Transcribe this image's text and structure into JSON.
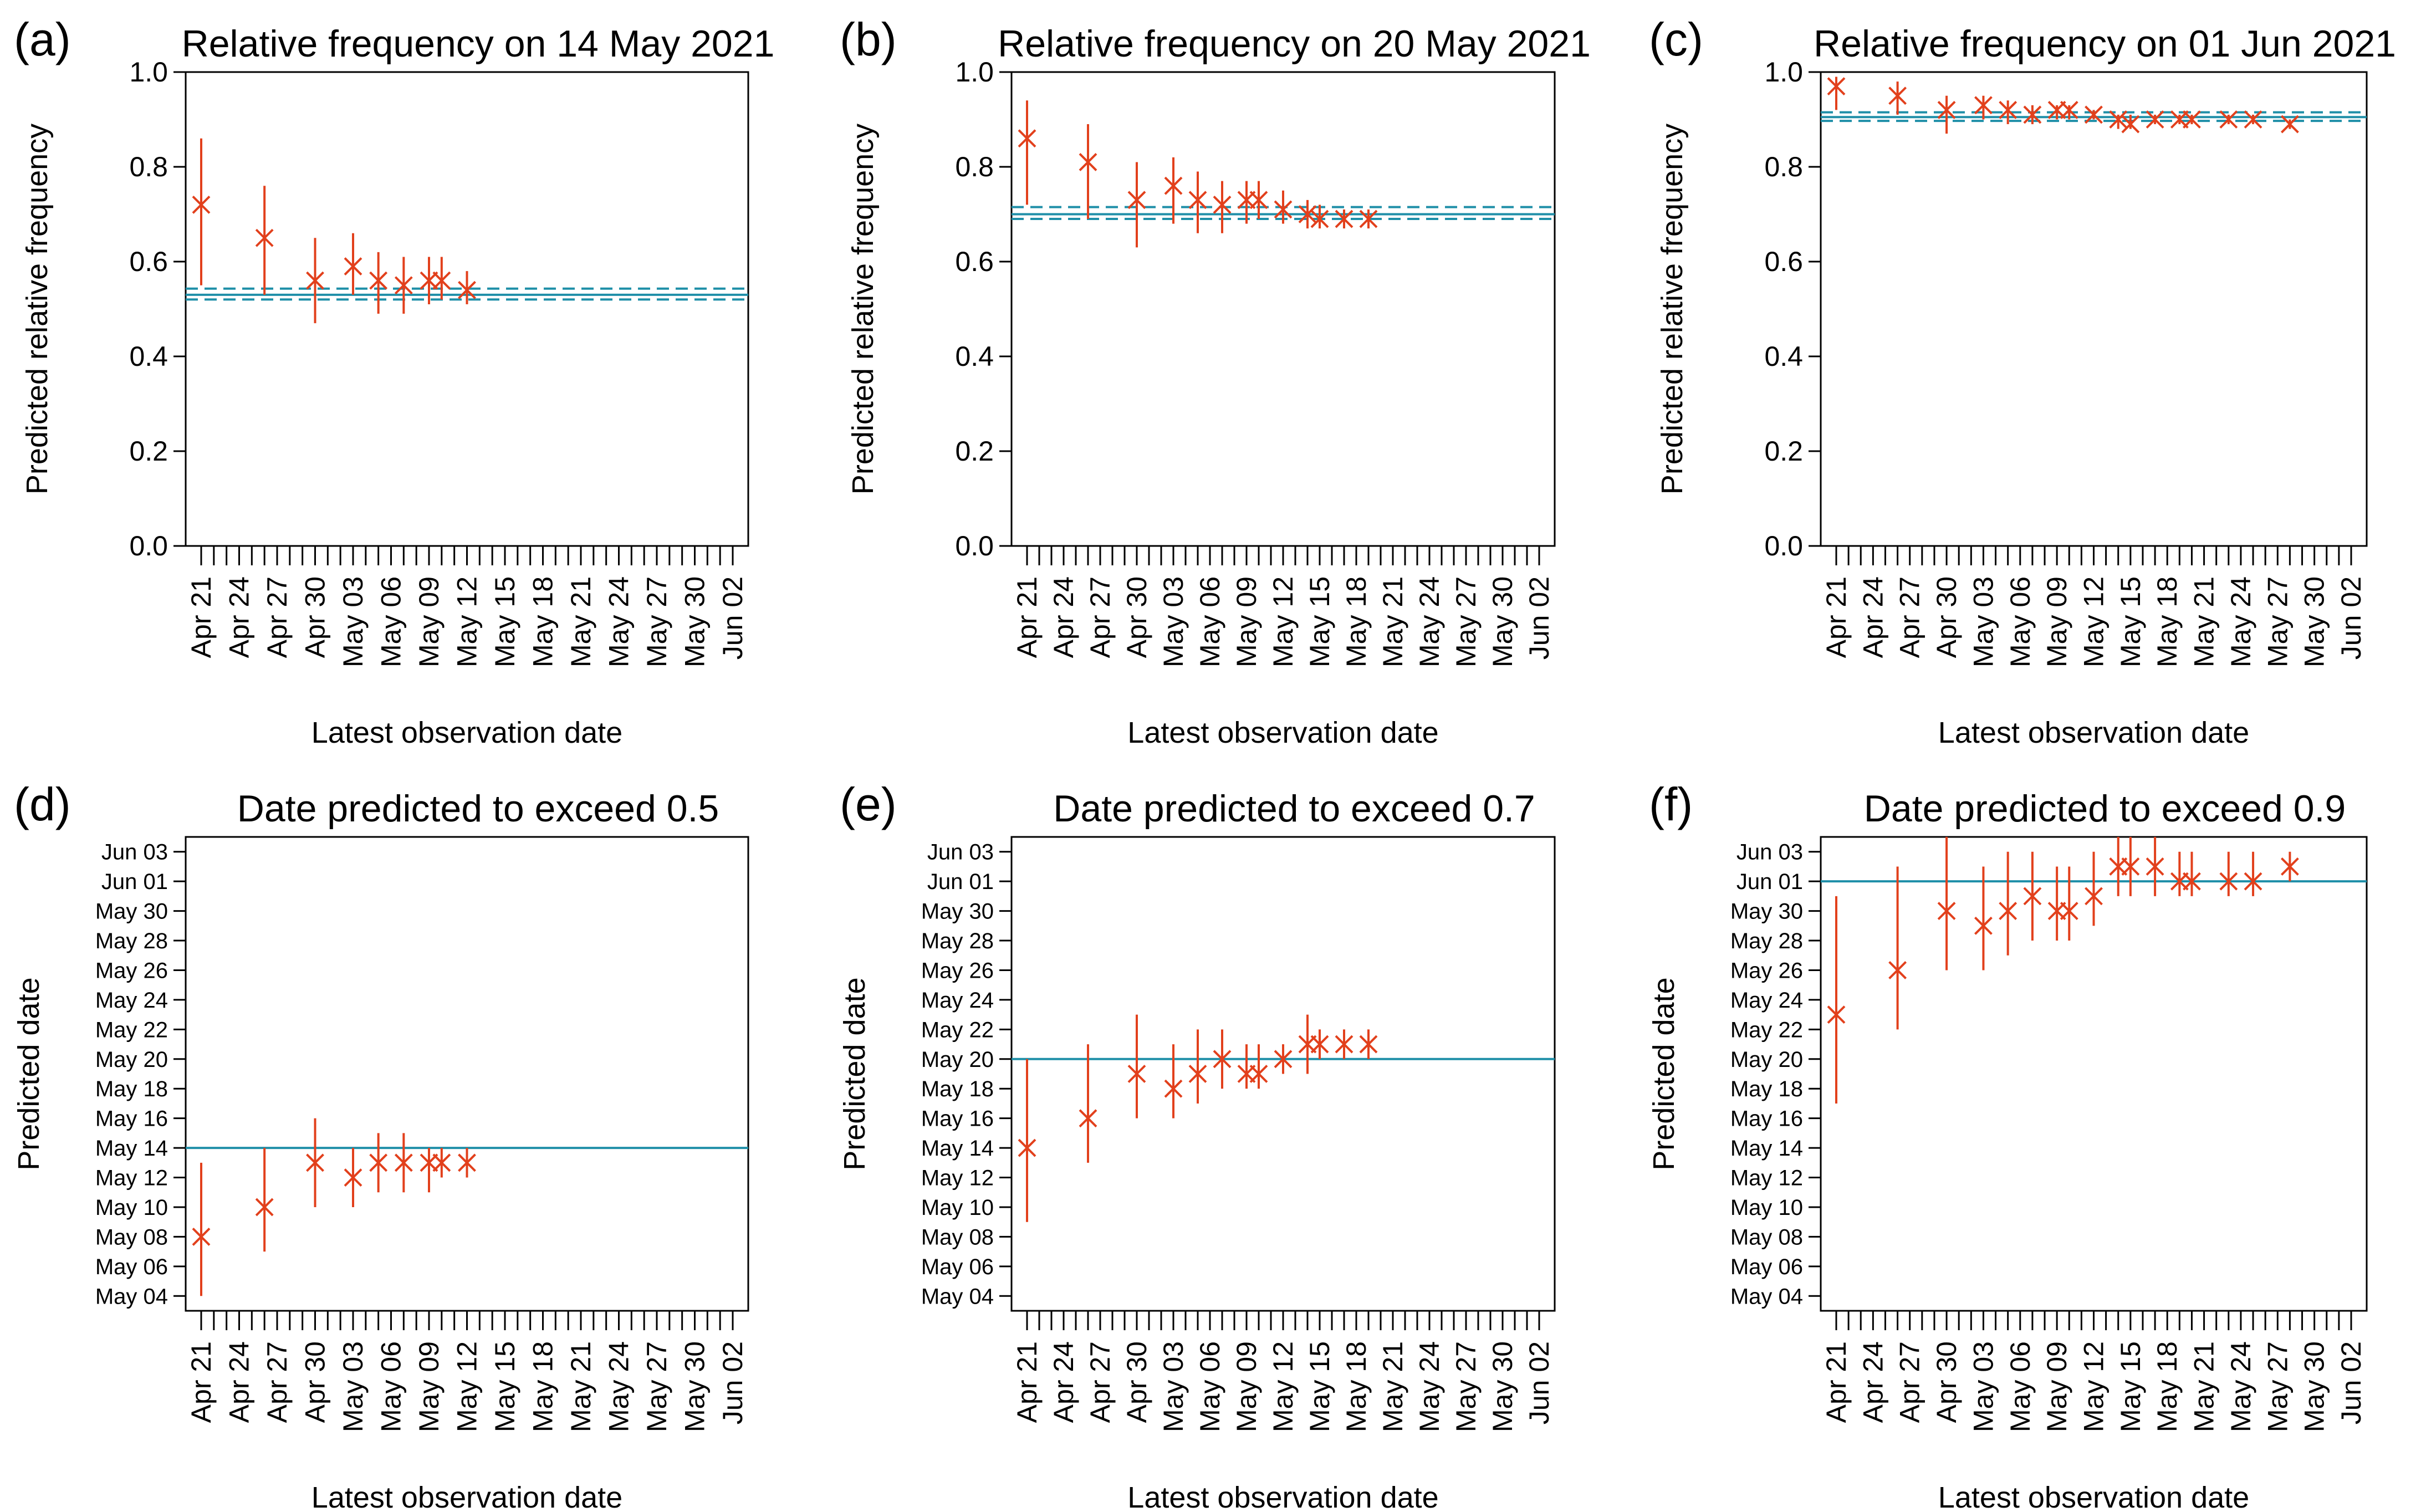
{
  "figure": {
    "series_colors": {
      "estimate": "#E2401C",
      "reference": "#1F8FA8"
    }
  },
  "chart_data": [
    {
      "panel": "(a)",
      "type": "scatter",
      "title": "Relative frequency on 14 May 2021",
      "xlabel": "Latest observation date",
      "ylabel": "Predicted relative frequency",
      "ylim": [
        0,
        1
      ],
      "yticks": [
        0.0,
        0.2,
        0.4,
        0.6,
        0.8,
        1.0
      ],
      "ytick_labels": [
        "0.0",
        "0.2",
        "0.4",
        "0.6",
        "0.8",
        "1.0"
      ],
      "x_day_range": [
        0,
        42
      ],
      "xtick_days": [
        0,
        3,
        6,
        9,
        12,
        15,
        18,
        21,
        24,
        27,
        30,
        33,
        36,
        39,
        42
      ],
      "xtick_labels": [
        "Apr 21",
        "Apr 24",
        "Apr 27",
        "Apr 30",
        "May 03",
        "May 06",
        "May 09",
        "May 12",
        "May 15",
        "May 18",
        "May 21",
        "May 24",
        "May 27",
        "May 30",
        "Jun 02"
      ],
      "grid": false,
      "reference": {
        "value": 0.53,
        "lower": 0.52,
        "upper": 0.543
      },
      "points": [
        {
          "x": 0,
          "y": 0.72,
          "lo": 0.55,
          "hi": 0.86
        },
        {
          "x": 5,
          "y": 0.65,
          "lo": 0.53,
          "hi": 0.76
        },
        {
          "x": 9,
          "y": 0.56,
          "lo": 0.47,
          "hi": 0.65
        },
        {
          "x": 12,
          "y": 0.59,
          "lo": 0.53,
          "hi": 0.66
        },
        {
          "x": 14,
          "y": 0.56,
          "lo": 0.49,
          "hi": 0.62
        },
        {
          "x": 16,
          "y": 0.55,
          "lo": 0.49,
          "hi": 0.61
        },
        {
          "x": 18,
          "y": 0.56,
          "lo": 0.51,
          "hi": 0.61
        },
        {
          "x": 19,
          "y": 0.56,
          "lo": 0.52,
          "hi": 0.61
        },
        {
          "x": 21,
          "y": 0.54,
          "lo": 0.51,
          "hi": 0.58
        }
      ]
    },
    {
      "panel": "(b)",
      "type": "scatter",
      "title": "Relative frequency on 20 May 2021",
      "xlabel": "Latest observation date",
      "ylabel": "Predicted relative frequency",
      "ylim": [
        0,
        1
      ],
      "yticks": [
        0.0,
        0.2,
        0.4,
        0.6,
        0.8,
        1.0
      ],
      "ytick_labels": [
        "0.0",
        "0.2",
        "0.4",
        "0.6",
        "0.8",
        "1.0"
      ],
      "x_day_range": [
        0,
        42
      ],
      "xtick_days": [
        0,
        3,
        6,
        9,
        12,
        15,
        18,
        21,
        24,
        27,
        30,
        33,
        36,
        39,
        42
      ],
      "xtick_labels": [
        "Apr 21",
        "Apr 24",
        "Apr 27",
        "Apr 30",
        "May 03",
        "May 06",
        "May 09",
        "May 12",
        "May 15",
        "May 18",
        "May 21",
        "May 24",
        "May 27",
        "May 30",
        "Jun 02"
      ],
      "grid": false,
      "reference": {
        "value": 0.7,
        "lower": 0.69,
        "upper": 0.715
      },
      "points": [
        {
          "x": 0,
          "y": 0.86,
          "lo": 0.72,
          "hi": 0.94
        },
        {
          "x": 5,
          "y": 0.81,
          "lo": 0.69,
          "hi": 0.89
        },
        {
          "x": 9,
          "y": 0.73,
          "lo": 0.63,
          "hi": 0.81
        },
        {
          "x": 12,
          "y": 0.76,
          "lo": 0.68,
          "hi": 0.82
        },
        {
          "x": 14,
          "y": 0.73,
          "lo": 0.66,
          "hi": 0.79
        },
        {
          "x": 16,
          "y": 0.72,
          "lo": 0.66,
          "hi": 0.77
        },
        {
          "x": 18,
          "y": 0.73,
          "lo": 0.68,
          "hi": 0.77
        },
        {
          "x": 19,
          "y": 0.73,
          "lo": 0.69,
          "hi": 0.77
        },
        {
          "x": 21,
          "y": 0.71,
          "lo": 0.68,
          "hi": 0.75
        },
        {
          "x": 23,
          "y": 0.7,
          "lo": 0.67,
          "hi": 0.73
        },
        {
          "x": 24,
          "y": 0.69,
          "lo": 0.67,
          "hi": 0.72
        },
        {
          "x": 26,
          "y": 0.69,
          "lo": 0.67,
          "hi": 0.71
        },
        {
          "x": 28,
          "y": 0.69,
          "lo": 0.67,
          "hi": 0.71
        }
      ]
    },
    {
      "panel": "(c)",
      "type": "scatter",
      "title": "Relative frequency on 01 Jun 2021",
      "xlabel": "Latest observation date",
      "ylabel": "Predicted relative frequency",
      "ylim": [
        0,
        1
      ],
      "yticks": [
        0.0,
        0.2,
        0.4,
        0.6,
        0.8,
        1.0
      ],
      "ytick_labels": [
        "0.0",
        "0.2",
        "0.4",
        "0.6",
        "0.8",
        "1.0"
      ],
      "x_day_range": [
        0,
        42
      ],
      "xtick_days": [
        0,
        3,
        6,
        9,
        12,
        15,
        18,
        21,
        24,
        27,
        30,
        33,
        36,
        39,
        42
      ],
      "xtick_labels": [
        "Apr 21",
        "Apr 24",
        "Apr 27",
        "Apr 30",
        "May 03",
        "May 06",
        "May 09",
        "May 12",
        "May 15",
        "May 18",
        "May 21",
        "May 24",
        "May 27",
        "May 30",
        "Jun 02"
      ],
      "grid": false,
      "reference": {
        "value": 0.905,
        "lower": 0.897,
        "upper": 0.915
      },
      "points": [
        {
          "x": 0,
          "y": 0.97,
          "lo": 0.92,
          "hi": 0.99
        },
        {
          "x": 5,
          "y": 0.95,
          "lo": 0.91,
          "hi": 0.98
        },
        {
          "x": 9,
          "y": 0.92,
          "lo": 0.87,
          "hi": 0.95
        },
        {
          "x": 12,
          "y": 0.93,
          "lo": 0.9,
          "hi": 0.95
        },
        {
          "x": 14,
          "y": 0.92,
          "lo": 0.89,
          "hi": 0.94
        },
        {
          "x": 16,
          "y": 0.91,
          "lo": 0.89,
          "hi": 0.93
        },
        {
          "x": 18,
          "y": 0.92,
          "lo": 0.9,
          "hi": 0.93
        },
        {
          "x": 19,
          "y": 0.92,
          "lo": 0.9,
          "hi": 0.93
        },
        {
          "x": 21,
          "y": 0.91,
          "lo": 0.9,
          "hi": 0.92
        },
        {
          "x": 23,
          "y": 0.9,
          "lo": 0.88,
          "hi": 0.91
        },
        {
          "x": 24,
          "y": 0.89,
          "lo": 0.88,
          "hi": 0.91
        },
        {
          "x": 26,
          "y": 0.9,
          "lo": 0.89,
          "hi": 0.91
        },
        {
          "x": 28,
          "y": 0.9,
          "lo": 0.89,
          "hi": 0.91
        },
        {
          "x": 29,
          "y": 0.9,
          "lo": 0.89,
          "hi": 0.91
        },
        {
          "x": 32,
          "y": 0.9,
          "lo": 0.89,
          "hi": 0.91
        },
        {
          "x": 34,
          "y": 0.9,
          "lo": 0.89,
          "hi": 0.91
        },
        {
          "x": 37,
          "y": 0.89,
          "lo": 0.88,
          "hi": 0.9
        }
      ]
    },
    {
      "panel": "(d)",
      "type": "scatter",
      "title": "Date predicted to exceed 0.5",
      "xlabel": "Latest observation date",
      "ylabel": "Predicted date",
      "y_note": "y values are days after 30 April 2021",
      "ylim": [
        3,
        35
      ],
      "yticks": [
        4,
        6,
        8,
        10,
        12,
        14,
        16,
        18,
        20,
        22,
        24,
        26,
        28,
        30,
        32,
        34
      ],
      "ytick_labels": [
        "May 04",
        "May 06",
        "May 08",
        "May 10",
        "May 12",
        "May 14",
        "May 16",
        "May 18",
        "May 20",
        "May 22",
        "May 24",
        "May 26",
        "May 28",
        "May 30",
        "Jun 01",
        "Jun 03"
      ],
      "x_day_range": [
        0,
        42
      ],
      "xtick_days": [
        0,
        3,
        6,
        9,
        12,
        15,
        18,
        21,
        24,
        27,
        30,
        33,
        36,
        39,
        42
      ],
      "xtick_labels": [
        "Apr 21",
        "Apr 24",
        "Apr 27",
        "Apr 30",
        "May 03",
        "May 06",
        "May 09",
        "May 12",
        "May 15",
        "May 18",
        "May 21",
        "May 24",
        "May 27",
        "May 30",
        "Jun 02"
      ],
      "grid": false,
      "reference": {
        "value": 14,
        "lower": 14,
        "upper": 14
      },
      "points": [
        {
          "x": 0,
          "y": 8,
          "lo": 4,
          "hi": 13
        },
        {
          "x": 5,
          "y": 10,
          "lo": 7,
          "hi": 14
        },
        {
          "x": 9,
          "y": 13,
          "lo": 10,
          "hi": 16
        },
        {
          "x": 12,
          "y": 12,
          "lo": 10,
          "hi": 14
        },
        {
          "x": 14,
          "y": 13,
          "lo": 11,
          "hi": 15
        },
        {
          "x": 16,
          "y": 13,
          "lo": 11,
          "hi": 15
        },
        {
          "x": 18,
          "y": 13,
          "lo": 11,
          "hi": 14
        },
        {
          "x": 19,
          "y": 13,
          "lo": 12,
          "hi": 14
        },
        {
          "x": 21,
          "y": 13,
          "lo": 12,
          "hi": 14
        }
      ]
    },
    {
      "panel": "(e)",
      "type": "scatter",
      "title": "Date predicted to exceed 0.7",
      "xlabel": "Latest observation date",
      "ylabel": "Predicted date",
      "y_note": "y values are days after 30 April 2021",
      "ylim": [
        3,
        35
      ],
      "yticks": [
        4,
        6,
        8,
        10,
        12,
        14,
        16,
        18,
        20,
        22,
        24,
        26,
        28,
        30,
        32,
        34
      ],
      "ytick_labels": [
        "May 04",
        "May 06",
        "May 08",
        "May 10",
        "May 12",
        "May 14",
        "May 16",
        "May 18",
        "May 20",
        "May 22",
        "May 24",
        "May 26",
        "May 28",
        "May 30",
        "Jun 01",
        "Jun 03"
      ],
      "x_day_range": [
        0,
        42
      ],
      "xtick_days": [
        0,
        3,
        6,
        9,
        12,
        15,
        18,
        21,
        24,
        27,
        30,
        33,
        36,
        39,
        42
      ],
      "xtick_labels": [
        "Apr 21",
        "Apr 24",
        "Apr 27",
        "Apr 30",
        "May 03",
        "May 06",
        "May 09",
        "May 12",
        "May 15",
        "May 18",
        "May 21",
        "May 24",
        "May 27",
        "May 30",
        "Jun 02"
      ],
      "grid": false,
      "reference": {
        "value": 20,
        "lower": 20,
        "upper": 20
      },
      "points": [
        {
          "x": 0,
          "y": 14,
          "lo": 9,
          "hi": 20
        },
        {
          "x": 5,
          "y": 16,
          "lo": 13,
          "hi": 21
        },
        {
          "x": 9,
          "y": 19,
          "lo": 16,
          "hi": 23
        },
        {
          "x": 12,
          "y": 18,
          "lo": 16,
          "hi": 21
        },
        {
          "x": 14,
          "y": 19,
          "lo": 17,
          "hi": 22
        },
        {
          "x": 16,
          "y": 20,
          "lo": 18,
          "hi": 22
        },
        {
          "x": 18,
          "y": 19,
          "lo": 18,
          "hi": 21
        },
        {
          "x": 19,
          "y": 19,
          "lo": 18,
          "hi": 21
        },
        {
          "x": 21,
          "y": 20,
          "lo": 19,
          "hi": 21
        },
        {
          "x": 23,
          "y": 21,
          "lo": 19,
          "hi": 23
        },
        {
          "x": 24,
          "y": 21,
          "lo": 20,
          "hi": 22
        },
        {
          "x": 26,
          "y": 21,
          "lo": 20,
          "hi": 22
        },
        {
          "x": 28,
          "y": 21,
          "lo": 20,
          "hi": 22
        }
      ]
    },
    {
      "panel": "(f)",
      "type": "scatter",
      "title": "Date predicted to exceed 0.9",
      "xlabel": "Latest observation date",
      "ylabel": "Predicted date",
      "y_note": "y values are days after 30 April 2021",
      "ylim": [
        3,
        35
      ],
      "yticks": [
        4,
        6,
        8,
        10,
        12,
        14,
        16,
        18,
        20,
        22,
        24,
        26,
        28,
        30,
        32,
        34
      ],
      "ytick_labels": [
        "May 04",
        "May 06",
        "May 08",
        "May 10",
        "May 12",
        "May 14",
        "May 16",
        "May 18",
        "May 20",
        "May 22",
        "May 24",
        "May 26",
        "May 28",
        "May 30",
        "Jun 01",
        "Jun 03"
      ],
      "x_day_range": [
        0,
        42
      ],
      "xtick_days": [
        0,
        3,
        6,
        9,
        12,
        15,
        18,
        21,
        24,
        27,
        30,
        33,
        36,
        39,
        42
      ],
      "xtick_labels": [
        "Apr 21",
        "Apr 24",
        "Apr 27",
        "Apr 30",
        "May 03",
        "May 06",
        "May 09",
        "May 12",
        "May 15",
        "May 18",
        "May 21",
        "May 24",
        "May 27",
        "May 30",
        "Jun 02"
      ],
      "grid": false,
      "reference": {
        "value": 32,
        "lower": 32,
        "upper": 32
      },
      "points": [
        {
          "x": 0,
          "y": 23,
          "lo": 17,
          "hi": 31
        },
        {
          "x": 5,
          "y": 26,
          "lo": 22,
          "hi": 33
        },
        {
          "x": 9,
          "y": 30,
          "lo": 26,
          "hi": 35
        },
        {
          "x": 12,
          "y": 29,
          "lo": 26,
          "hi": 33
        },
        {
          "x": 14,
          "y": 30,
          "lo": 27,
          "hi": 34
        },
        {
          "x": 16,
          "y": 31,
          "lo": 28,
          "hi": 34
        },
        {
          "x": 18,
          "y": 30,
          "lo": 28,
          "hi": 33
        },
        {
          "x": 19,
          "y": 30,
          "lo": 28,
          "hi": 33
        },
        {
          "x": 21,
          "y": 31,
          "lo": 29,
          "hi": 34
        },
        {
          "x": 23,
          "y": 33,
          "lo": 31,
          "hi": 35
        },
        {
          "x": 24,
          "y": 33,
          "lo": 31,
          "hi": 35
        },
        {
          "x": 26,
          "y": 33,
          "lo": 31,
          "hi": 35
        },
        {
          "x": 28,
          "y": 32,
          "lo": 31,
          "hi": 34
        },
        {
          "x": 29,
          "y": 32,
          "lo": 31,
          "hi": 34
        },
        {
          "x": 32,
          "y": 32,
          "lo": 31,
          "hi": 34
        },
        {
          "x": 34,
          "y": 32,
          "lo": 31,
          "hi": 34
        },
        {
          "x": 37,
          "y": 33,
          "lo": 32,
          "hi": 34
        }
      ]
    }
  ]
}
